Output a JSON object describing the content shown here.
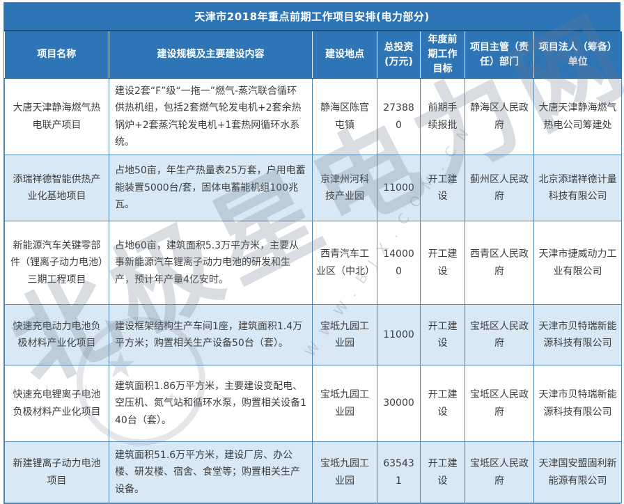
{
  "title": "天津市2018年重点前期工作项目安排(电力部分)",
  "table": {
    "columns": [
      {
        "key": "name",
        "label": "项目名称"
      },
      {
        "key": "scale",
        "label": "建设规模及主要建设内容"
      },
      {
        "key": "location",
        "label": "建设地点"
      },
      {
        "key": "investment",
        "label": "总投资(万元)"
      },
      {
        "key": "target",
        "label": "年度前期工作目标"
      },
      {
        "key": "department",
        "label": "项目主管（责任）部门"
      },
      {
        "key": "legal",
        "label": "项目法人（筹备）单位"
      }
    ],
    "rows": [
      {
        "name": "大唐天津静海燃气热电联产项目",
        "scale": "建设2套“F”级“一拖一”燃气-蒸汽联合循环供热机组，包括2套燃气轮发电机+2套余热锅炉+2套蒸汽轮发电机+1套热网循环水系统。",
        "location": "静海区陈官屯镇",
        "investment": "273880",
        "target": "前期手续报批",
        "department": "静海区人民政府",
        "legal": "大唐天津静海燃气热电公司筹建处"
      },
      {
        "name": "添瑞祥德智能供热产业化基地项目",
        "scale": "占地50亩，年生产热量表25万套，户用电蓄能装置5000台/套，固体电蓄能机组100兆瓦。",
        "location": "京津州河科技产业园",
        "investment": "11000",
        "target": "开工建设",
        "department": "蓟州区人民政府",
        "legal": "北京添瑞祥德计量科技有限公司"
      },
      {
        "name": "新能源汽车关键零部件（锂离子动力电池）三期工程项目",
        "scale": "占地60亩，建筑面积5.3万平方米，主要从事新能源汽车锂离子动力电池的研发和生产，预计年产量4亿安时。",
        "location": "西青汽车工业区（中北）",
        "investment": "140000",
        "target": "开工建设",
        "department": "西青区人民政府",
        "legal": "天津市捷威动力工业有限公司"
      },
      {
        "name": "快速充电动力电池负极材料产业化项目",
        "scale": "建设框架结构生产车间1座，建筑面积1.4万平方米；购置相关生产设备50台（套）。",
        "location": "宝坻九园工业园",
        "investment": "11000",
        "target": "开工建设",
        "department": "宝坻区人民政府",
        "legal": "天津市贝特瑞新能源科技有限公司"
      },
      {
        "name": "快速充电锂离子电池负极材料产业化项目",
        "scale": "建筑面积1.86万平方米，主要建设变配电、空压机、氮气站和循环水泵，购置相关设备140台（套）。",
        "location": "宝坻九园工业园",
        "investment": "30000",
        "target": "开工建设",
        "department": "宝坻区人民政府",
        "legal": "天津市贝特瑞新能源科技有限公司"
      },
      {
        "name": "新建锂离子动力电池项目",
        "scale": "建筑面积51.6万平方米，建设厂房、办公楼、研发楼、宿舍、食堂等；购置相关生产设备。",
        "location": "宝坻九园工业园",
        "investment": "635431",
        "target": "开工建设",
        "department": "宝坻区人民政府",
        "legal": "天津国安盟固利新能源有限公司"
      }
    ]
  },
  "watermark": {
    "text": "北极星电力网",
    "url": "WWW.BJX.COM.CN",
    "star_big": "★",
    "star_small": "✦"
  },
  "colors": {
    "title_bg": "#2d74b6",
    "header_bg": "#2e75b6",
    "row_alt_bg": "#d9e8f5",
    "border": "#4e86b8",
    "header_text": "#ffffff",
    "body_text": "#3d3d3d"
  }
}
